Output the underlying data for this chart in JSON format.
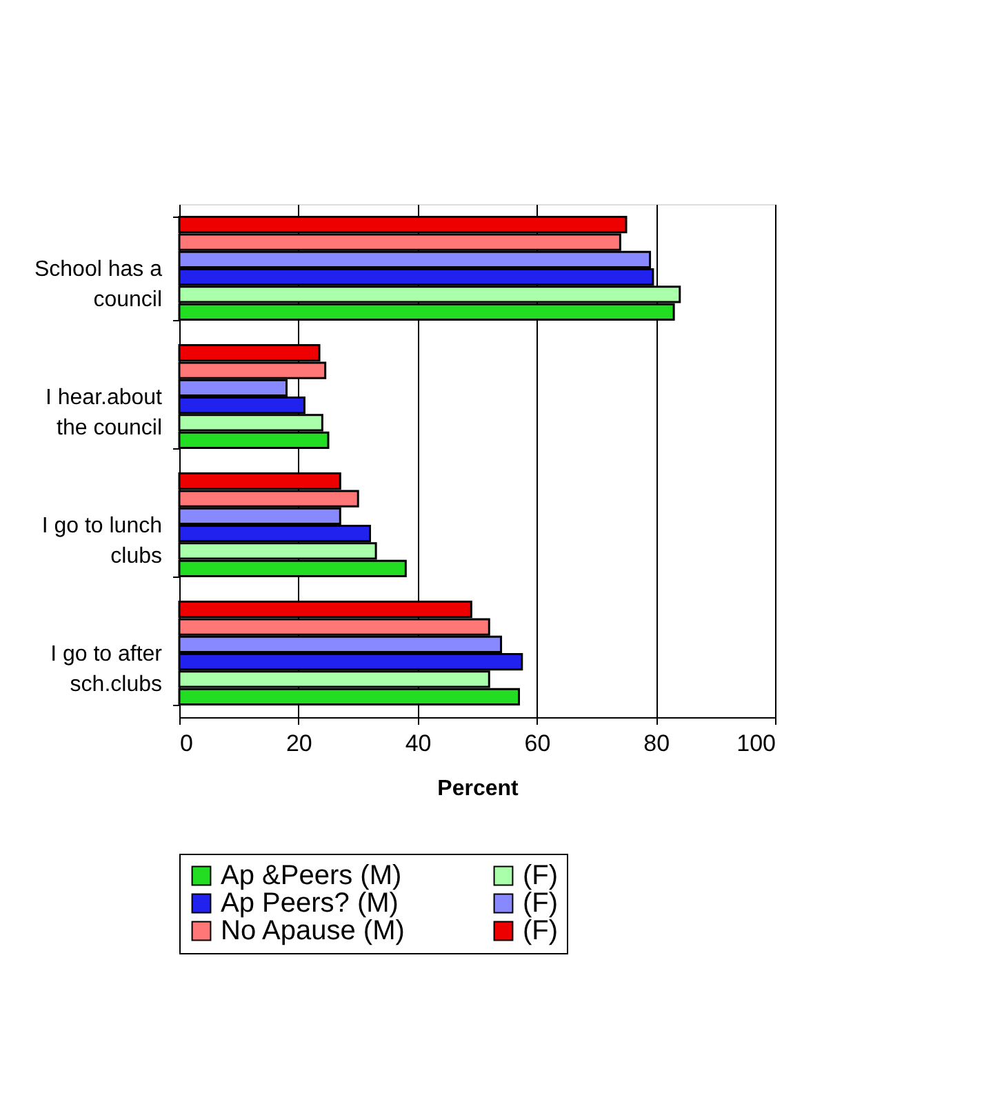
{
  "chart_data": {
    "type": "bar",
    "orientation": "horizontal",
    "xlabel": "Percent",
    "categories": [
      "School has  a\ncouncil",
      "I hear.about\nthe council",
      "I go to lunch\nclubs",
      "I go to after\nsch.clubs"
    ],
    "series": [
      {
        "name": "Ap &Peers (M)",
        "color": "#22dd22",
        "values": [
          83,
          25,
          38,
          57
        ]
      },
      {
        "name": "(F)",
        "color": "#aaffaa",
        "values": [
          84,
          24,
          33,
          52
        ]
      },
      {
        "name": "Ap Peers? (M)",
        "color": "#2222ee",
        "values": [
          79.5,
          21,
          32,
          57.5
        ]
      },
      {
        "name": "(F)",
        "color": "#8888ff",
        "values": [
          79,
          18,
          27,
          54
        ]
      },
      {
        "name": "No Apause (M)",
        "color": "#ff7777",
        "values": [
          74,
          24.5,
          30,
          52
        ]
      },
      {
        "name": "(F)",
        "color": "#ee0000",
        "values": [
          75,
          23.5,
          27,
          49
        ]
      }
    ],
    "xlim": [
      0,
      100
    ],
    "xticks": [
      0,
      20,
      40,
      60,
      80,
      100
    ],
    "grid": "x",
    "legend": "bottom"
  }
}
